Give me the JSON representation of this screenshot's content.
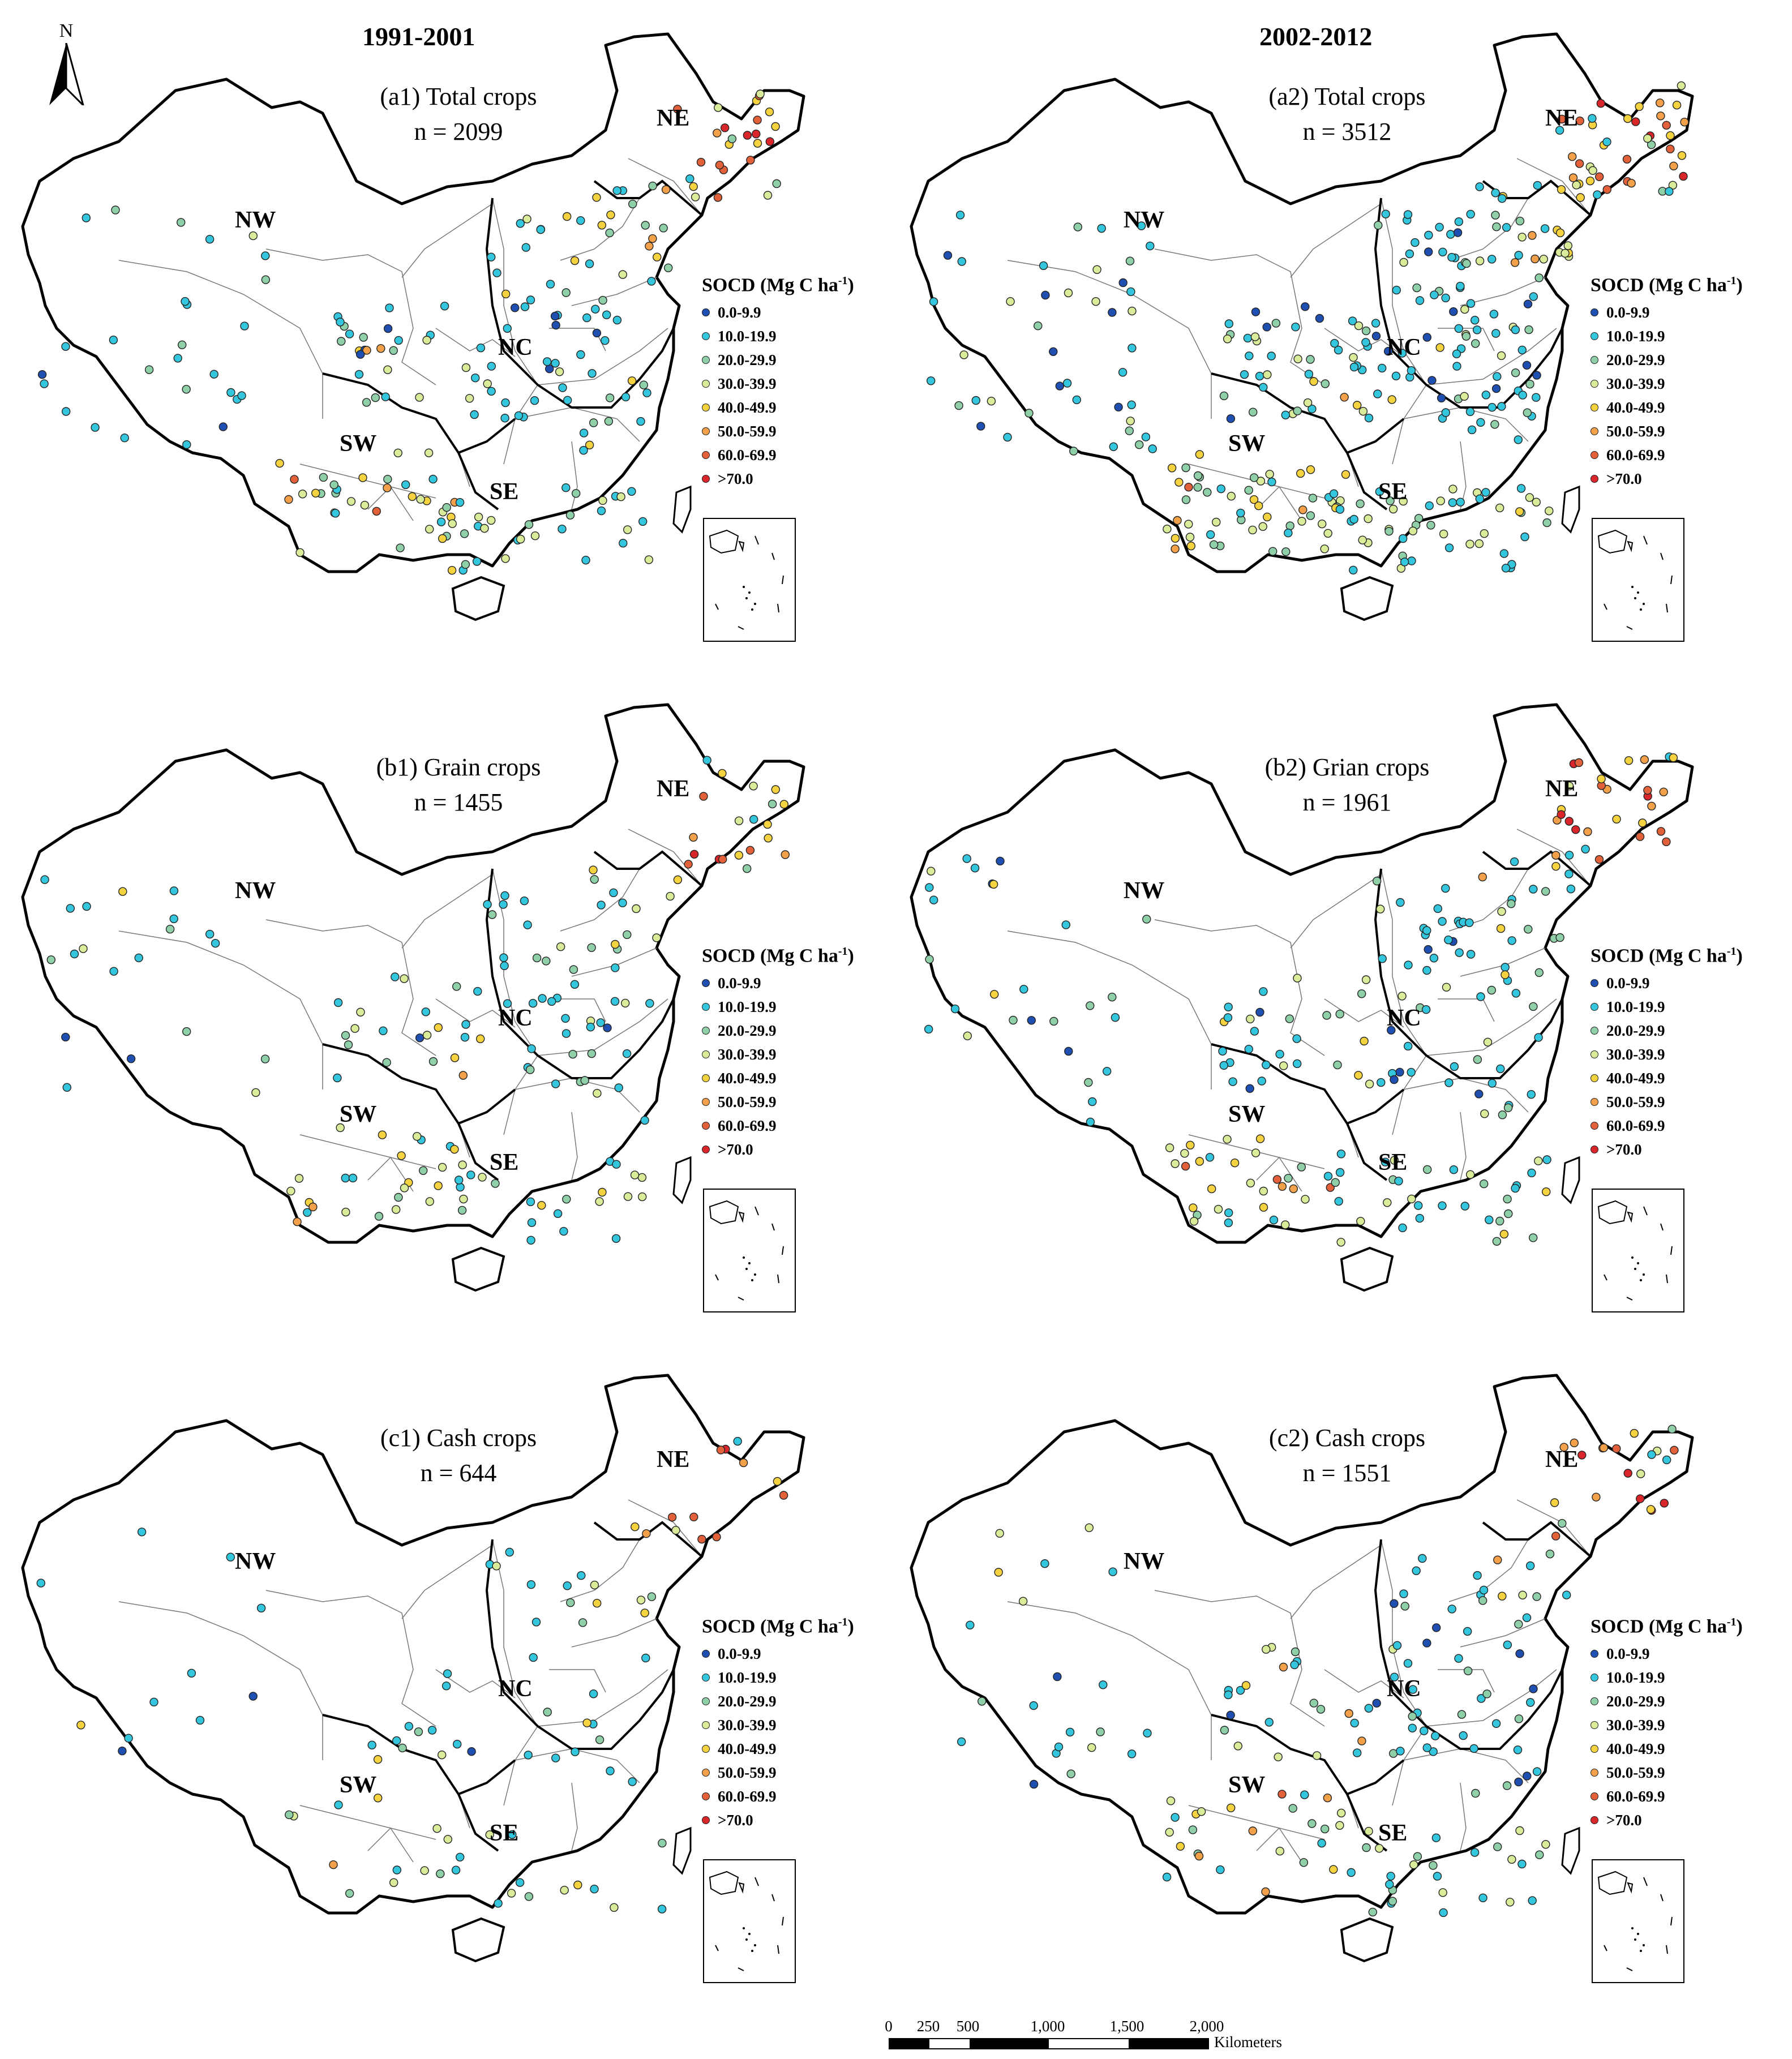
{
  "column_headers": [
    "1991-2001",
    "2002-2012"
  ],
  "north_arrow": {
    "label": "N",
    "icon": "north-arrow-icon"
  },
  "legend": {
    "title_main": "SOCD (Mg C ha",
    "title_sup": "-1",
    "title_end": ")",
    "classes": [
      {
        "label": "0.0-9.9",
        "color": "#1f4fb0"
      },
      {
        "label": "10.0-19.9",
        "color": "#33c6dd"
      },
      {
        "label": "20.0-29.9",
        "color": "#8fd0a8"
      },
      {
        "label": "30.0-39.9",
        "color": "#d8ec9a"
      },
      {
        "label": "40.0-49.9",
        "color": "#f5d340"
      },
      {
        "label": "50.0-59.9",
        "color": "#f2a14a"
      },
      {
        "label": "60.0-69.9",
        "color": "#e2603a"
      },
      {
        "label": ">70.0",
        "color": "#d8262b"
      }
    ]
  },
  "panels": [
    {
      "id": "a1",
      "title": "(a1) Total crops",
      "count": "n = 2099"
    },
    {
      "id": "a2",
      "title": "(a2) Total crops",
      "count": "n = 3512"
    },
    {
      "id": "b1",
      "title": "(b1) Grain crops",
      "count": "n = 1455"
    },
    {
      "id": "b2",
      "title": "(b2) Grian crops",
      "count": "n = 1961"
    },
    {
      "id": "c1",
      "title": "(c1) Cash crops",
      "count": "n = 644"
    },
    {
      "id": "c2",
      "title": "(c2) Cash crops",
      "count": "n = 1551"
    }
  ],
  "regions": [
    "NE",
    "NW",
    "NC",
    "SW",
    "SE"
  ],
  "scale_bar": {
    "ticks": [
      "0",
      "250",
      "500",
      "1,000",
      "1,500",
      "2,000"
    ],
    "unit": "Kilometers"
  }
}
